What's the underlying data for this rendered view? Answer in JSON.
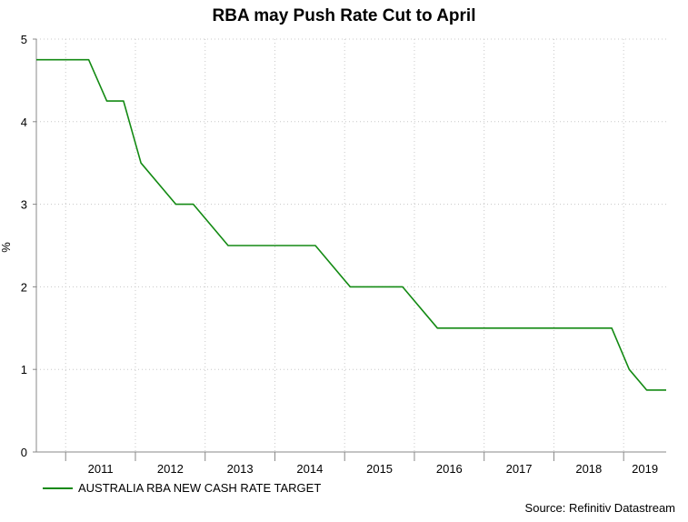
{
  "chart_data": {
    "type": "line",
    "title": "RBA may Push Rate Cut to April",
    "xlabel": "",
    "ylabel": "%",
    "xlim": [
      2010.58,
      2019.61
    ],
    "ylim": [
      0,
      5
    ],
    "yticks": [
      0,
      1,
      2,
      3,
      4,
      5
    ],
    "xtick_labels": [
      "2011",
      "2012",
      "2013",
      "2014",
      "2015",
      "2016",
      "2017",
      "2018",
      "2019"
    ],
    "grid": true,
    "legend_position": "bottom-left",
    "series": [
      {
        "name": "AUSTRALIA RBA NEW CASH RATE TARGET",
        "color": "#138a13",
        "x": [
          2010.58,
          2011.33,
          2011.59,
          2011.83,
          2012.08,
          2012.58,
          2012.83,
          2013.33,
          2013.58,
          2014.58,
          2015.08,
          2015.58,
          2015.83,
          2016.33,
          2016.58,
          2018.83,
          2019.08,
          2019.33,
          2019.61
        ],
        "values": [
          4.75,
          4.75,
          4.25,
          4.25,
          3.5,
          3.0,
          3.0,
          2.5,
          2.5,
          2.5,
          2.0,
          2.0,
          2.0,
          1.5,
          1.5,
          1.5,
          1.0,
          0.75,
          0.75
        ]
      }
    ],
    "source": "Source: Refinitiv Datastream"
  }
}
